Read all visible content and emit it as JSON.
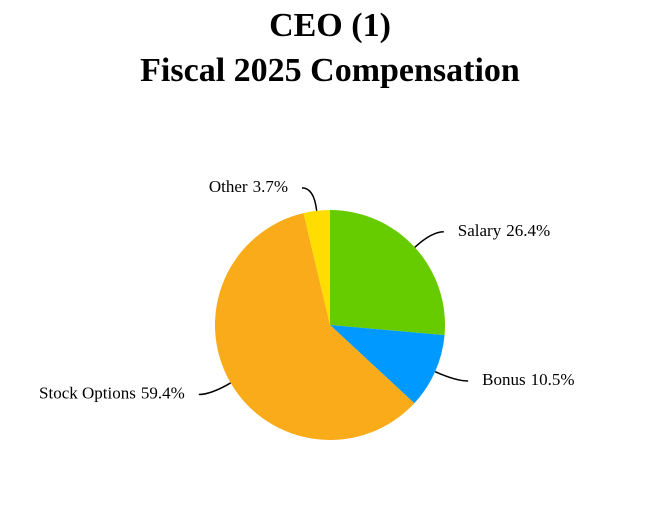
{
  "chart_data": {
    "type": "pie",
    "title": "CEO (1)",
    "subtitle": "Fiscal 2025 Compensation",
    "categories": [
      "Salary",
      "Bonus",
      "Stock Options",
      "Other"
    ],
    "values": [
      26.4,
      10.5,
      59.4,
      3.7
    ],
    "value_labels": [
      "26.4%",
      "10.5%",
      "59.4%",
      "3.7%"
    ],
    "colors": [
      "#66cc00",
      "#0099ff",
      "#f9ab19",
      "#ffdd00"
    ]
  }
}
